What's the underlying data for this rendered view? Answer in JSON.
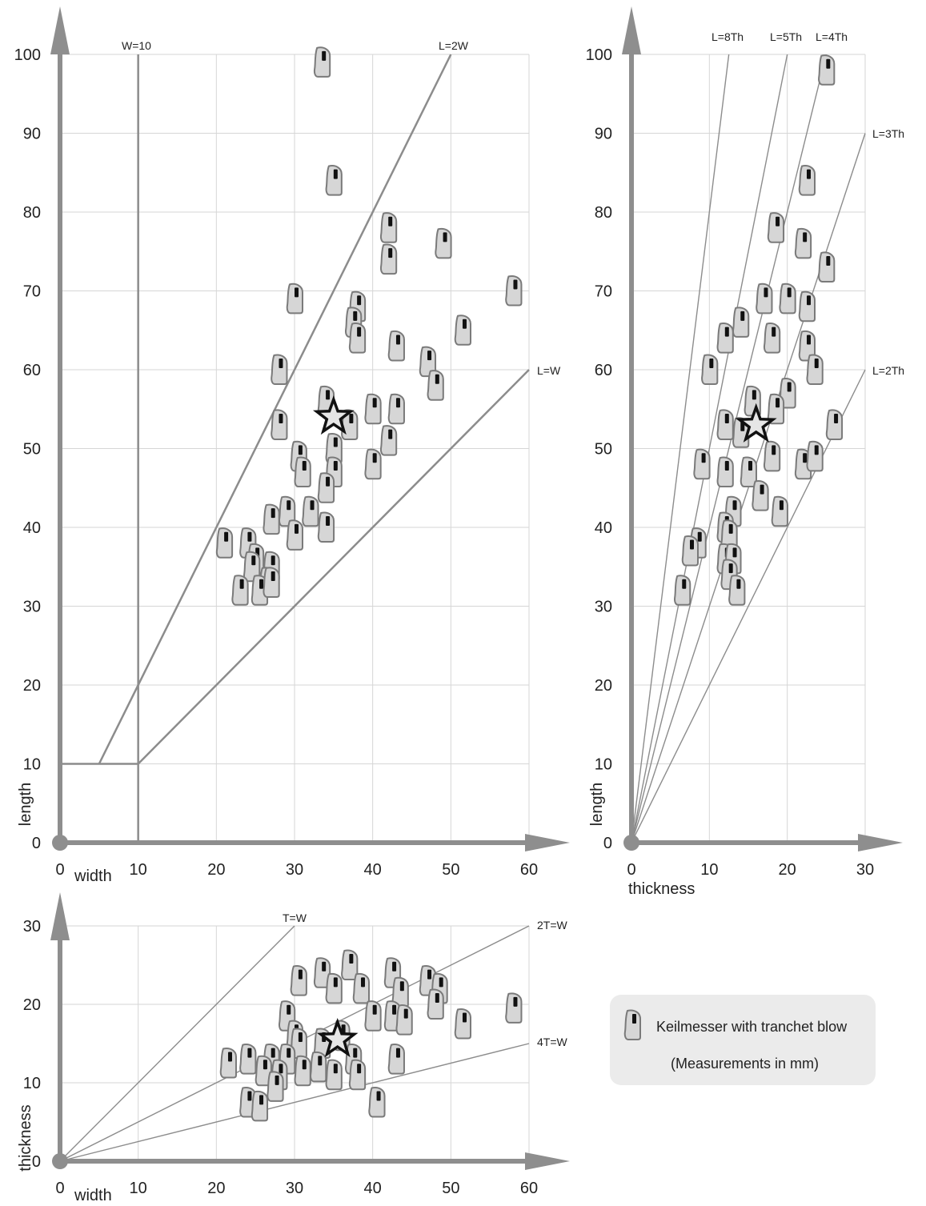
{
  "chart_data": [
    {
      "id": "lw",
      "type": "scatter",
      "xlabel": "width",
      "ylabel": "length",
      "xlim": [
        0,
        60
      ],
      "ylim": [
        0,
        100
      ],
      "xticks": [
        "0",
        "10",
        "20",
        "30",
        "40",
        "50",
        "60"
      ],
      "yticks": [
        "0",
        "10",
        "20",
        "30",
        "40",
        "50",
        "60",
        "70",
        "80",
        "90",
        "100"
      ],
      "reference_lines": [
        {
          "label": "W=10",
          "points": [
            [
              10,
              0
            ],
            [
              10,
              100
            ]
          ]
        },
        {
          "label": "L=2W",
          "points": [
            [
              5,
              10
            ],
            [
              50,
              100
            ]
          ]
        },
        {
          "label": "L=W",
          "points": [
            [
              10,
              10
            ],
            [
              60,
              60
            ]
          ]
        },
        {
          "label": "",
          "points": [
            [
              0,
              10
            ],
            [
              10,
              10
            ]
          ]
        }
      ],
      "points": [
        [
          33.5,
          99
        ],
        [
          35,
          84
        ],
        [
          42,
          78
        ],
        [
          49,
          76
        ],
        [
          42,
          74
        ],
        [
          58,
          70
        ],
        [
          30,
          69
        ],
        [
          38,
          68
        ],
        [
          37.5,
          66
        ],
        [
          38,
          64
        ],
        [
          51.5,
          65
        ],
        [
          43,
          63
        ],
        [
          47,
          61
        ],
        [
          28,
          60
        ],
        [
          48,
          58
        ],
        [
          34,
          56
        ],
        [
          40,
          55
        ],
        [
          43,
          55
        ],
        [
          28,
          53
        ],
        [
          37,
          53
        ],
        [
          42,
          51
        ],
        [
          30.5,
          49
        ],
        [
          35,
          50
        ],
        [
          31,
          47
        ],
        [
          40,
          48
        ],
        [
          35,
          47
        ],
        [
          34,
          45
        ],
        [
          29,
          42
        ],
        [
          32,
          42
        ],
        [
          27,
          41
        ],
        [
          30,
          39
        ],
        [
          34,
          40
        ],
        [
          21,
          38
        ],
        [
          24,
          38
        ],
        [
          25,
          36
        ],
        [
          27,
          35
        ],
        [
          24.5,
          35
        ],
        [
          26.5,
          33
        ],
        [
          23,
          32
        ],
        [
          25.5,
          32
        ],
        [
          27,
          33
        ]
      ],
      "highlight": {
        "symbol": "star",
        "x": 35,
        "y": 54
      }
    },
    {
      "id": "lt",
      "type": "scatter",
      "xlabel": "thickness",
      "ylabel": "length",
      "xlim": [
        0,
        30
      ],
      "ylim": [
        0,
        100
      ],
      "xticks": [
        "0",
        "10",
        "20",
        "30"
      ],
      "yticks": [
        "0",
        "10",
        "20",
        "30",
        "40",
        "50",
        "60",
        "70",
        "80",
        "90",
        "100"
      ],
      "reference_lines": [
        {
          "label": "L=8Th",
          "points": [
            [
              0,
              0
            ],
            [
              12.5,
              100
            ]
          ]
        },
        {
          "label": "L=5Th",
          "points": [
            [
              0,
              0
            ],
            [
              20,
              100
            ]
          ]
        },
        {
          "label": "L=4Th",
          "points": [
            [
              0,
              0
            ],
            [
              25,
              100
            ]
          ]
        },
        {
          "label": "L=3Th",
          "points": [
            [
              0,
              0
            ],
            [
              30,
              90
            ]
          ]
        },
        {
          "label": "L=2Th",
          "points": [
            [
              0,
              0
            ],
            [
              30,
              60
            ]
          ]
        }
      ],
      "points": [
        [
          25,
          98
        ],
        [
          22.5,
          84
        ],
        [
          18.5,
          78
        ],
        [
          22,
          76
        ],
        [
          25,
          73
        ],
        [
          14,
          66
        ],
        [
          12,
          64
        ],
        [
          17,
          69
        ],
        [
          20,
          69
        ],
        [
          22.5,
          68
        ],
        [
          18,
          64
        ],
        [
          22.5,
          63
        ],
        [
          23.5,
          60
        ],
        [
          10,
          60
        ],
        [
          20,
          57
        ],
        [
          15.5,
          56
        ],
        [
          18.5,
          55
        ],
        [
          12,
          53
        ],
        [
          14,
          52
        ],
        [
          18,
          49
        ],
        [
          26,
          53
        ],
        [
          9,
          48
        ],
        [
          12,
          47
        ],
        [
          15,
          47
        ],
        [
          22,
          48
        ],
        [
          23.5,
          49
        ],
        [
          16.5,
          44
        ],
        [
          19,
          42
        ],
        [
          13,
          42
        ],
        [
          12,
          40
        ],
        [
          12.5,
          39
        ],
        [
          8.5,
          38
        ],
        [
          7.5,
          37
        ],
        [
          12,
          36
        ],
        [
          13,
          36
        ],
        [
          12.5,
          34
        ],
        [
          13.5,
          32
        ],
        [
          6.5,
          32
        ]
      ],
      "highlight": {
        "symbol": "star",
        "x": 16,
        "y": 53
      }
    },
    {
      "id": "tw",
      "type": "scatter",
      "xlabel": "width",
      "ylabel": "thickness",
      "xlim": [
        0,
        60
      ],
      "ylim": [
        0,
        30
      ],
      "xticks": [
        "0",
        "10",
        "20",
        "30",
        "40",
        "50",
        "60"
      ],
      "yticks": [
        "0",
        "10",
        "20",
        "30"
      ],
      "reference_lines": [
        {
          "label": "T=W",
          "points": [
            [
              0,
              0
            ],
            [
              30,
              30
            ]
          ]
        },
        {
          "label": "2T=W",
          "points": [
            [
              0,
              0
            ],
            [
              60,
              30
            ]
          ]
        },
        {
          "label": "4T=W",
          "points": [
            [
              0,
              0
            ],
            [
              60,
              15
            ]
          ]
        }
      ],
      "points": [
        [
          30.5,
          23
        ],
        [
          33.5,
          24
        ],
        [
          37,
          25
        ],
        [
          42.5,
          24
        ],
        [
          47,
          23
        ],
        [
          35,
          22
        ],
        [
          38.5,
          22
        ],
        [
          43.5,
          21.5
        ],
        [
          48.5,
          22
        ],
        [
          48,
          20
        ],
        [
          29,
          18.5
        ],
        [
          40,
          18.5
        ],
        [
          42.5,
          18.5
        ],
        [
          44,
          18
        ],
        [
          51.5,
          17.5
        ],
        [
          58,
          19.5
        ],
        [
          30,
          16
        ],
        [
          30.5,
          15
        ],
        [
          33.5,
          15
        ],
        [
          36,
          16
        ],
        [
          21.5,
          12.5
        ],
        [
          24,
          13
        ],
        [
          27,
          13
        ],
        [
          29,
          13
        ],
        [
          26,
          11.5
        ],
        [
          28,
          11
        ],
        [
          31,
          11.5
        ],
        [
          33,
          12
        ],
        [
          35,
          11
        ],
        [
          37.5,
          13
        ],
        [
          38,
          11
        ],
        [
          43,
          13
        ],
        [
          27.5,
          9.5
        ],
        [
          24,
          7.5
        ],
        [
          25.5,
          7
        ],
        [
          40.5,
          7.5
        ]
      ],
      "highlight": {
        "symbol": "star",
        "x": 35.5,
        "y": 15.5
      }
    }
  ],
  "legend": {
    "label": "Keilmesser with tranchet blow",
    "note": "(Measurements in mm)"
  }
}
